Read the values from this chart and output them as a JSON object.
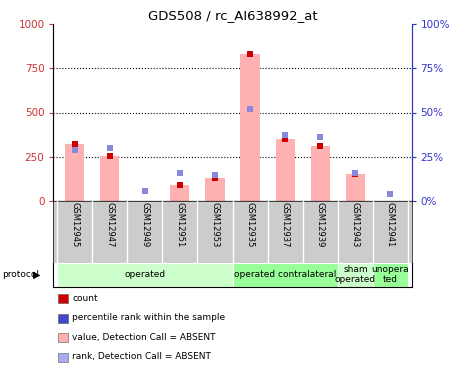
{
  "title": "GDS508 / rc_AI638992_at",
  "samples": [
    "GSM12945",
    "GSM12947",
    "GSM12949",
    "GSM12951",
    "GSM12953",
    "GSM12935",
    "GSM12937",
    "GSM12939",
    "GSM12943",
    "GSM12941"
  ],
  "pink_values": [
    320,
    255,
    0,
    90,
    130,
    830,
    350,
    310,
    150,
    0
  ],
  "blue_pct": [
    29,
    30,
    5.5,
    15.5,
    14.5,
    52,
    37.5,
    36,
    15.5,
    4
  ],
  "ylim_left": [
    0,
    1000
  ],
  "ylim_right": [
    0,
    100
  ],
  "yticks_left": [
    0,
    250,
    500,
    750,
    1000
  ],
  "yticks_right": [
    0,
    25,
    50,
    75,
    100
  ],
  "ytick_labels_left": [
    "0",
    "250",
    "500",
    "750",
    "1000"
  ],
  "ytick_labels_right": [
    "0%",
    "25%",
    "50%",
    "75%",
    "100%"
  ],
  "protocol_groups": [
    {
      "label": "operated",
      "start": 0,
      "end": 5,
      "color": "#ccffcc"
    },
    {
      "label": "operated contralateral",
      "start": 5,
      "end": 8,
      "color": "#99ff99"
    },
    {
      "label": "sham\noperated",
      "start": 8,
      "end": 9,
      "color": "#ccffcc"
    },
    {
      "label": "unopera\nted",
      "start": 9,
      "end": 10,
      "color": "#99ff99"
    }
  ],
  "left_axis_color": "#cc3333",
  "right_axis_color": "#3333cc",
  "bar_width": 0.55,
  "pink_color": "#ffb0b0",
  "blue_color": "#8888dd",
  "red_marker_color": "#cc0000",
  "blue_marker_color": "#4444cc",
  "xlabel_bg": "#cccccc",
  "legend_items": [
    {
      "color": "#cc0000",
      "label": "count"
    },
    {
      "color": "#4444cc",
      "label": "percentile rank within the sample"
    },
    {
      "color": "#ffb0b0",
      "label": "value, Detection Call = ABSENT"
    },
    {
      "color": "#aaaaee",
      "label": "rank, Detection Call = ABSENT"
    }
  ]
}
